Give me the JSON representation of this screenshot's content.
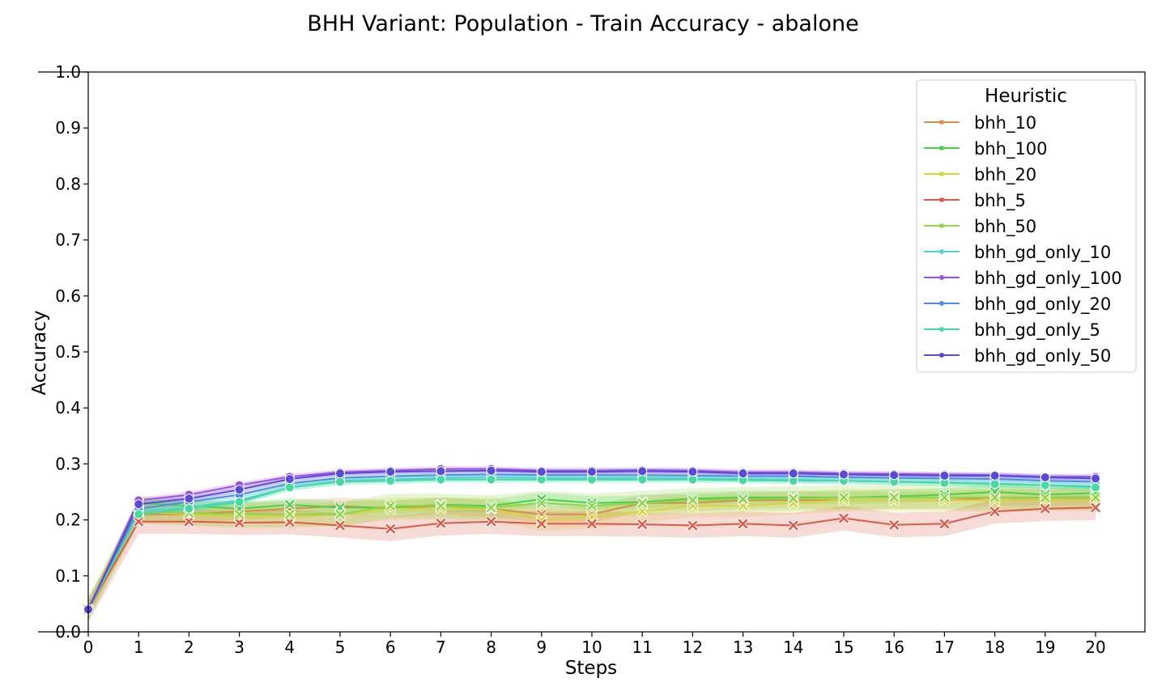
{
  "chart_data": {
    "type": "line",
    "title": "BHH Variant: Population - Train Accuracy - abalone",
    "xlabel": "Steps",
    "ylabel": "Accuracy",
    "xlim": [
      0,
      21
    ],
    "ylim": [
      0.0,
      1.0
    ],
    "x": [
      0,
      1,
      2,
      3,
      4,
      5,
      6,
      7,
      8,
      9,
      10,
      11,
      12,
      13,
      14,
      15,
      16,
      17,
      18,
      19,
      20
    ],
    "xticks": [
      "0",
      "1",
      "2",
      "3",
      "4",
      "5",
      "6",
      "7",
      "8",
      "9",
      "10",
      "11",
      "12",
      "13",
      "14",
      "15",
      "16",
      "17",
      "18",
      "19",
      "20"
    ],
    "yticks": [
      "0.0",
      "0.1",
      "0.2",
      "0.3",
      "0.4",
      "0.5",
      "0.6",
      "0.7",
      "0.8",
      "0.9",
      "1.0"
    ],
    "legend_title": "Heuristic",
    "legend_position": "top-right",
    "grid": false,
    "series": [
      {
        "name": "bhh_10",
        "color": "#e08b4a",
        "marker": "x",
        "values": [
          0.04,
          0.21,
          0.21,
          0.215,
          0.22,
          0.225,
          0.22,
          0.225,
          0.22,
          0.21,
          0.21,
          0.23,
          0.23,
          0.235,
          0.235,
          0.235,
          0.235,
          0.235,
          0.24,
          0.24,
          0.24
        ],
        "band": 0.015
      },
      {
        "name": "bhh_100",
        "color": "#46d14f",
        "marker": "x",
        "values": [
          0.04,
          0.23,
          0.225,
          0.22,
          0.227,
          0.222,
          0.222,
          0.227,
          0.225,
          0.237,
          0.23,
          0.232,
          0.238,
          0.24,
          0.24,
          0.24,
          0.242,
          0.245,
          0.25,
          0.245,
          0.248
        ],
        "band": 0.012
      },
      {
        "name": "bhh_20",
        "color": "#d4d63c",
        "marker": "x",
        "values": [
          0.04,
          0.215,
          0.21,
          0.205,
          0.205,
          0.21,
          0.22,
          0.22,
          0.22,
          0.2,
          0.205,
          0.215,
          0.225,
          0.225,
          0.23,
          0.235,
          0.235,
          0.235,
          0.235,
          0.235,
          0.235
        ],
        "band": 0.02
      },
      {
        "name": "bhh_5",
        "color": "#db5a48",
        "marker": "x",
        "values": [
          0.04,
          0.197,
          0.197,
          0.195,
          0.196,
          0.19,
          0.184,
          0.194,
          0.197,
          0.193,
          0.193,
          0.192,
          0.19,
          0.193,
          0.19,
          0.203,
          0.191,
          0.193,
          0.215,
          0.22,
          0.222
        ],
        "band": 0.022
      },
      {
        "name": "bhh_50",
        "color": "#8fd44a",
        "marker": "x",
        "values": [
          0.04,
          0.215,
          0.212,
          0.21,
          0.21,
          0.21,
          0.225,
          0.225,
          0.222,
          0.23,
          0.225,
          0.23,
          0.235,
          0.237,
          0.238,
          0.24,
          0.24,
          0.24,
          0.24,
          0.24,
          0.24
        ],
        "band": 0.022
      },
      {
        "name": "bhh_gd_only_10",
        "color": "#4fd3d3",
        "marker": "o",
        "values": [
          0.04,
          0.215,
          0.222,
          0.235,
          0.258,
          0.27,
          0.272,
          0.275,
          0.276,
          0.275,
          0.275,
          0.275,
          0.274,
          0.273,
          0.272,
          0.27,
          0.268,
          0.267,
          0.265,
          0.262,
          0.26
        ],
        "band": 0.006
      },
      {
        "name": "bhh_gd_only_100",
        "color": "#a04ee0",
        "marker": "o",
        "values": [
          0.04,
          0.235,
          0.245,
          0.262,
          0.277,
          0.285,
          0.288,
          0.291,
          0.291,
          0.288,
          0.288,
          0.289,
          0.288,
          0.285,
          0.285,
          0.283,
          0.282,
          0.281,
          0.28,
          0.277,
          0.277
        ],
        "band": 0.005
      },
      {
        "name": "bhh_gd_only_20",
        "color": "#4a8fe0",
        "marker": "o",
        "values": [
          0.04,
          0.22,
          0.232,
          0.245,
          0.265,
          0.275,
          0.278,
          0.28,
          0.281,
          0.28,
          0.28,
          0.28,
          0.279,
          0.278,
          0.278,
          0.276,
          0.275,
          0.274,
          0.273,
          0.27,
          0.268
        ],
        "band": 0.005
      },
      {
        "name": "bhh_gd_only_5",
        "color": "#45dba0",
        "marker": "o",
        "values": [
          0.04,
          0.21,
          0.22,
          0.232,
          0.258,
          0.268,
          0.27,
          0.272,
          0.272,
          0.272,
          0.272,
          0.272,
          0.272,
          0.271,
          0.27,
          0.27,
          0.268,
          0.266,
          0.264,
          0.262,
          0.258
        ],
        "band": 0.006
      },
      {
        "name": "bhh_gd_only_50",
        "color": "#5a4ad8",
        "marker": "o",
        "values": [
          0.04,
          0.228,
          0.238,
          0.254,
          0.273,
          0.283,
          0.286,
          0.287,
          0.288,
          0.286,
          0.286,
          0.287,
          0.286,
          0.283,
          0.283,
          0.281,
          0.28,
          0.279,
          0.279,
          0.276,
          0.274
        ],
        "band": 0.005
      }
    ]
  }
}
